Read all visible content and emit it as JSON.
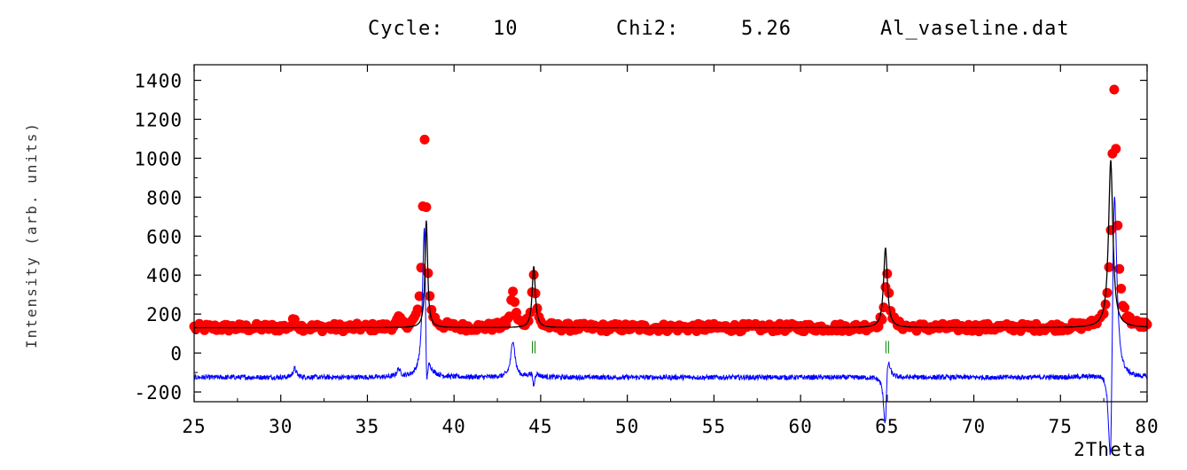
{
  "header": {
    "cycle_label": "Cycle:",
    "cycle_value": "10",
    "chi_label": "Chi2:",
    "chi_value": "5.26",
    "filename": "Al_vaseline.dat"
  },
  "chart_data": {
    "type": "scatter",
    "xlabel": "2Theta",
    "ylabel": "Intensity (arb. units)",
    "xlim": [
      25,
      80
    ],
    "ylim": [
      -250,
      1480
    ],
    "x_ticks": [
      25,
      30,
      35,
      40,
      45,
      50,
      55,
      60,
      65,
      70,
      75,
      80
    ],
    "y_ticks": [
      -200,
      0,
      200,
      400,
      600,
      800,
      1000,
      1200,
      1400
    ],
    "colors": {
      "observed": "#ff0000",
      "calculated": "#000000",
      "difference": "#0000ff",
      "bragg": "#008000"
    },
    "background_level": 130,
    "observed_peaks": [
      {
        "center": 30.8,
        "height": 45,
        "width": 0.12
      },
      {
        "center": 36.8,
        "height": 40,
        "width": 0.12
      },
      {
        "center": 38.3,
        "height": 980,
        "width": 0.13
      },
      {
        "center": 43.4,
        "height": 190,
        "width": 0.14
      },
      {
        "center": 44.6,
        "height": 270,
        "width": 0.14
      },
      {
        "center": 65.0,
        "height": 265,
        "width": 0.16
      },
      {
        "center": 78.1,
        "height": 1220,
        "width": 0.17
      }
    ],
    "calculated_peaks": [
      {
        "center": 38.4,
        "height": 550,
        "width": 0.09
      },
      {
        "center": 44.6,
        "height": 315,
        "width": 0.11
      },
      {
        "center": 64.9,
        "height": 410,
        "width": 0.13
      },
      {
        "center": 77.9,
        "height": 860,
        "width": 0.15
      }
    ],
    "difference_offset": -125,
    "bragg_positions": [
      44.6,
      65.0
    ],
    "bragg_y": 30
  }
}
